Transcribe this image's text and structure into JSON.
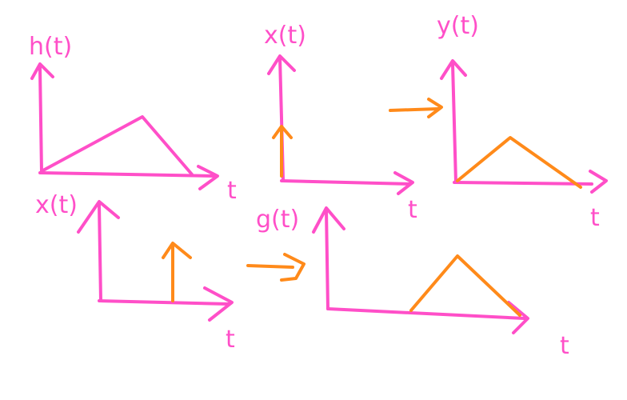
{
  "colors": {
    "axes": "#ff4fc8",
    "signal": "#ff8a1a",
    "background": "#ffffff"
  },
  "panels": {
    "h_plot": {
      "y_label": "h(t)",
      "x_label": "t"
    },
    "x_plot_top": {
      "y_label": "x(t)",
      "x_label": "t"
    },
    "y_plot": {
      "y_label": "y(t)",
      "x_label": "t"
    },
    "x_plot_bottom": {
      "y_label": "x(t)",
      "x_label": "t"
    },
    "g_plot": {
      "y_label": "g(t)",
      "x_label": "t"
    }
  },
  "arrows": {
    "right_arrow_icon": "right-arrow-icon"
  }
}
